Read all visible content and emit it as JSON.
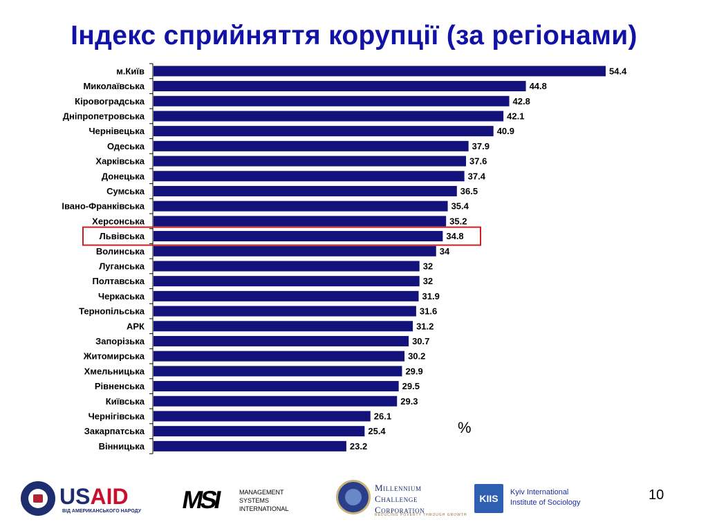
{
  "slide": {
    "title": "Індекс сприйняття корупції (за регіонами)",
    "page_number": "10",
    "unit": "%"
  },
  "colors": {
    "title": "#1212a6",
    "bar": "#12127a",
    "highlight_box": "#cc1f1f"
  },
  "chart_data": {
    "type": "bar",
    "orientation": "horizontal",
    "categories": [
      "м.Київ",
      "Миколаївська",
      "Кіровоградська",
      "Дніпропетровська",
      "Чернівецька",
      "Одеська",
      "Харківська",
      "Донецька",
      "Сумська",
      "Івано-Франківська",
      "Херсонська",
      "Львівська",
      "Волинська",
      "Луганська",
      "Полтавська",
      "Черкаська",
      "Тернопільська",
      "АРК",
      "Запорізька",
      "Житомирська",
      "Хмельницька",
      "Рівненська",
      "Київська",
      "Чернігівська",
      "Закарпатська",
      "Вінницька"
    ],
    "values": [
      54.4,
      44.8,
      42.8,
      42.1,
      40.9,
      37.9,
      37.6,
      37.4,
      36.5,
      35.4,
      35.2,
      34.8,
      34,
      32,
      32,
      31.9,
      31.6,
      31.2,
      30.7,
      30.2,
      29.9,
      29.5,
      29.3,
      26.1,
      25.4,
      23.2
    ],
    "value_labels": [
      "54.4",
      "44.8",
      "42.8",
      "42.1",
      "40.9",
      "37.9",
      "37.6",
      "37.4",
      "36.5",
      "35.4",
      "35.2",
      "34.8",
      "34",
      "32",
      "32",
      "31.9",
      "31.6",
      "31.2",
      "30.7",
      "30.2",
      "29.9",
      "29.5",
      "29.3",
      "26.1",
      "25.4",
      "23.2"
    ],
    "highlighted_category": "Львівська",
    "xlim": [
      0,
      54.4
    ],
    "grid": false,
    "legend": "none"
  },
  "logos": {
    "usaid": {
      "wordmark_us": "US",
      "wordmark_aid": "AID",
      "tagline": "ВІД АМЕРИКАНСЬКОГО НАРОДУ",
      "seal_icon": "usaid-seal-icon"
    },
    "msi": {
      "mark": "MSI",
      "text": "MANAGEMENT\nSYSTEMS\nINTERNATIONAL"
    },
    "mcc": {
      "text": "Millennium\nChallenge\nCorporation",
      "tagline": "REDUCING POVERTY THROUGH GROWTH",
      "globe_icon": "mcc-globe-icon"
    },
    "kiis": {
      "mark": "KIIS",
      "text": "Kyiv International\nInstitute of Sociology"
    }
  }
}
